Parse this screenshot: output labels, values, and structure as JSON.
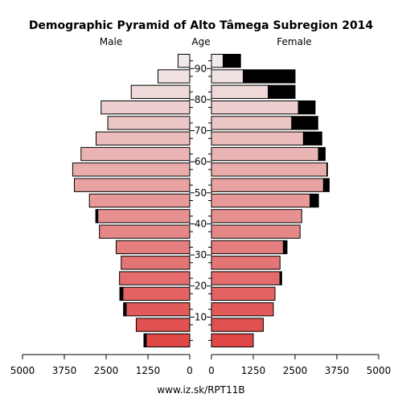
{
  "chart_data": {
    "type": "bar",
    "title": "Demographic Pyramid of Alto Tâmega Subregion 2014",
    "left_label": "Male",
    "center_label": "Age",
    "right_label": "Female",
    "footer": "www.iz.sk/RPT11B",
    "age_groups": [
      "0-4",
      "5-9",
      "10-14",
      "15-19",
      "20-24",
      "25-29",
      "30-34",
      "35-39",
      "40-44",
      "45-49",
      "50-54",
      "55-59",
      "60-64",
      "65-69",
      "70-74",
      "75-79",
      "80-84",
      "85-89",
      "90+"
    ],
    "age_ticks": [
      "10",
      "20",
      "30",
      "40",
      "50",
      "60",
      "70",
      "80",
      "90"
    ],
    "x_ticks_left": [
      "5000",
      "3750",
      "2500",
      "1250",
      "0"
    ],
    "x_ticks_right": [
      "0",
      "1250",
      "2500",
      "3750",
      "5000"
    ],
    "xlim": [
      0,
      5000
    ],
    "male": {
      "base": [
        1300,
        1600,
        1900,
        2000,
        2100,
        2050,
        2200,
        2700,
        2750,
        3000,
        3450,
        3500,
        3250,
        2800,
        2450,
        2650,
        1750,
        950,
        350
      ],
      "excess": [
        70,
        0,
        80,
        90,
        0,
        0,
        0,
        0,
        60,
        0,
        0,
        0,
        0,
        0,
        0,
        0,
        0,
        0,
        0
      ]
    },
    "female": {
      "base": [
        1250,
        1550,
        1850,
        1900,
        2050,
        2050,
        2150,
        2650,
        2700,
        2950,
        3350,
        3450,
        3200,
        2750,
        2400,
        2600,
        1700,
        950,
        350
      ],
      "excess": [
        0,
        0,
        0,
        0,
        50,
        0,
        110,
        0,
        0,
        250,
        170,
        20,
        200,
        550,
        780,
        500,
        800,
        1550,
        520
      ]
    },
    "colors": {
      "young": "#e04848",
      "old": "#f0eaea",
      "excess": "#000000",
      "stroke": "#000000"
    }
  }
}
